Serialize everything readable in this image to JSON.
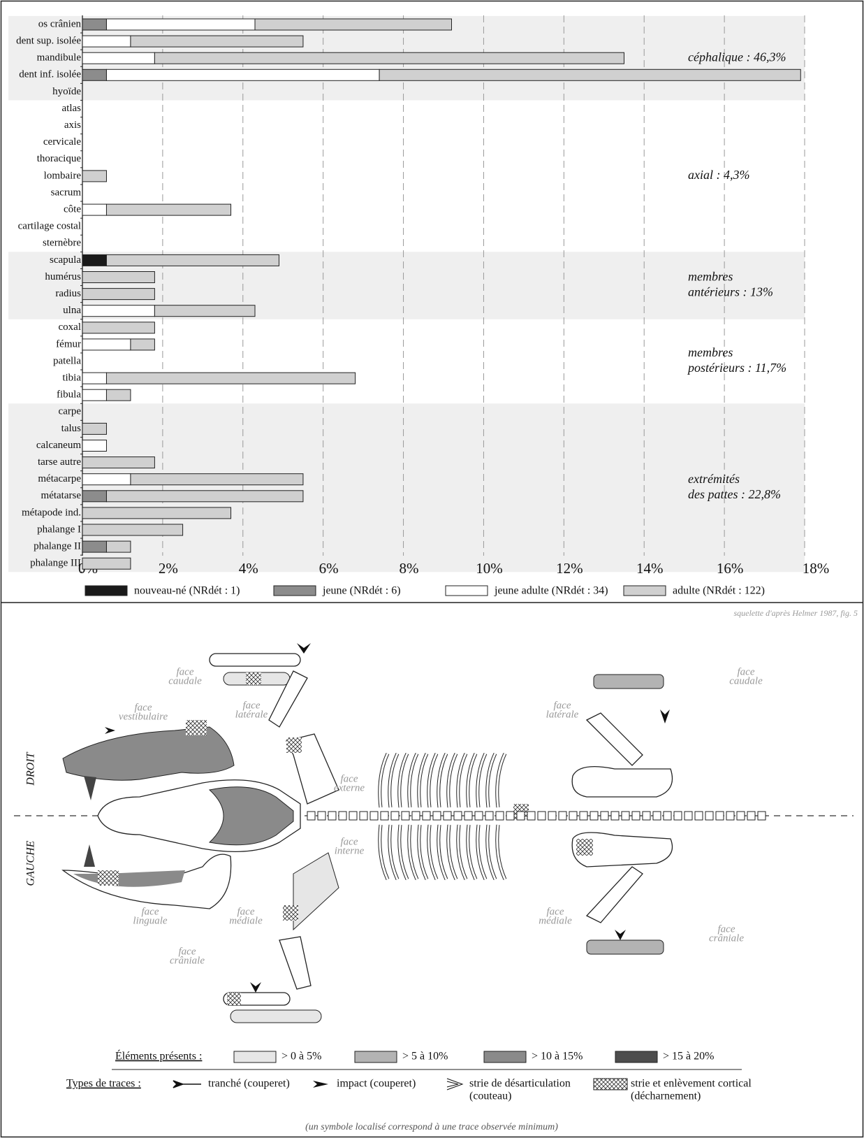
{
  "chart_data": {
    "type": "bar",
    "orientation": "horizontal",
    "stacked": true,
    "categories": [
      "os crânien",
      "dent sup. isolée",
      "mandibule",
      "dent inf. isolée",
      "hyoïde",
      "atlas",
      "axis",
      "cervicale",
      "thoracique",
      "lombaire",
      "sacrum",
      "côte",
      "cartilage costal",
      "sternèbre",
      "scapula",
      "humérus",
      "radius",
      "ulna",
      "coxal",
      "fémur",
      "patella",
      "tibia",
      "fibula",
      "carpe",
      "talus",
      "calcaneum",
      "tarse autre",
      "métacarpe",
      "métatarse",
      "métapode ind.",
      "phalange I",
      "phalange II",
      "phalange III"
    ],
    "series": [
      {
        "name": "nouveau-né (NRdét : 1)",
        "color": "#1a1a1a",
        "values": [
          0,
          0,
          0,
          0,
          0,
          0,
          0,
          0,
          0,
          0,
          0,
          0,
          0,
          0,
          0.6,
          0,
          0,
          0,
          0,
          0,
          0,
          0,
          0,
          0,
          0,
          0,
          0,
          0,
          0,
          0,
          0,
          0,
          0
        ]
      },
      {
        "name": "jeune (NRdét : 6)",
        "color": "#8c8c8c",
        "values": [
          0.6,
          0,
          0,
          0.6,
          0,
          0,
          0,
          0,
          0,
          0,
          0,
          0,
          0,
          0,
          0,
          0,
          0,
          0,
          0,
          0,
          0,
          0,
          0,
          0,
          0,
          0,
          0,
          0,
          0.6,
          0,
          0,
          0.6,
          0
        ]
      },
      {
        "name": "jeune adulte (NRdét : 34)",
        "color": "#ffffff",
        "values": [
          3.7,
          1.2,
          1.8,
          6.8,
          0,
          0,
          0,
          0,
          0,
          0,
          0,
          0.6,
          0,
          0,
          0,
          0,
          0,
          1.8,
          0,
          1.2,
          0,
          0.6,
          0.6,
          0,
          0,
          0.6,
          0,
          1.2,
          0,
          0,
          0,
          0,
          0
        ]
      },
      {
        "name": "adulte (NRdét : 122)",
        "color": "#d0d0d0",
        "values": [
          4.9,
          4.3,
          11.7,
          10.5,
          0,
          0,
          0,
          0,
          0,
          0.6,
          0,
          3.1,
          0,
          0,
          4.3,
          1.8,
          1.8,
          2.5,
          1.8,
          0.6,
          0,
          6.2,
          0.6,
          0,
          0.6,
          0,
          1.8,
          4.3,
          4.9,
          3.7,
          2.5,
          0.6,
          1.2
        ]
      }
    ],
    "xlim": [
      0,
      18
    ],
    "xticks": [
      {
        "value": 0,
        "label": "0%"
      },
      {
        "value": 2,
        "label": "2%"
      },
      {
        "value": 4,
        "label": "4%"
      },
      {
        "value": 6,
        "label": "6%"
      },
      {
        "value": 8,
        "label": "8%"
      },
      {
        "value": 10,
        "label": "10%"
      },
      {
        "value": 12,
        "label": "12%"
      },
      {
        "value": 14,
        "label": "14%"
      },
      {
        "value": 16,
        "label": "16%"
      },
      {
        "value": 18,
        "label": "18%"
      }
    ],
    "grid": true,
    "annotations": [
      [
        "céphalique : 46,3%"
      ],
      [
        "axial : 4,3%"
      ],
      [
        "membres",
        "antérieurs : 13%"
      ],
      [
        "membres",
        "postérieurs : 11,7%"
      ],
      [
        "extrémités",
        "des pattes : 22,8%"
      ]
    ]
  },
  "diagram": {
    "credit": "squelette d'après Helmer 1987, fig. 5",
    "sides": [
      "DROIT",
      "GAUCHE"
    ],
    "face_labels": [
      {
        "lines": [
          "face",
          "caudale"
        ]
      },
      {
        "lines": [
          "face",
          "latérale"
        ]
      },
      {
        "lines": [
          "face",
          "vestibulaire"
        ]
      },
      {
        "lines": [
          "face",
          "externe"
        ]
      },
      {
        "lines": [
          "face",
          "interne"
        ]
      },
      {
        "lines": [
          "face",
          "linguale"
        ]
      },
      {
        "lines": [
          "face",
          "médiale"
        ]
      },
      {
        "lines": [
          "face",
          "crâniale"
        ]
      },
      {
        "lines": [
          "face",
          "latérale"
        ]
      },
      {
        "lines": [
          "face",
          "caudale"
        ]
      },
      {
        "lines": [
          "face",
          "médiale"
        ]
      },
      {
        "lines": [
          "face",
          "crâniale"
        ]
      }
    ],
    "presence_legend": {
      "title": "Éléments présents :",
      "items": [
        {
          "label": "> 0 à 5%",
          "color": "#e6e6e6"
        },
        {
          "label": "> 5 à 10%",
          "color": "#b3b3b3"
        },
        {
          "label": "> 10 à 15%",
          "color": "#8a8a8a"
        },
        {
          "label": "> 15 à 20%",
          "color": "#4d4d4d"
        }
      ]
    },
    "traces_legend": {
      "title": "Types de traces :",
      "items": [
        {
          "lines": [
            "tranché (couperet)"
          ]
        },
        {
          "lines": [
            "impact (couperet)"
          ]
        },
        {
          "lines": [
            "strie de désarticulation",
            "(couteau)"
          ]
        },
        {
          "lines": [
            "strie et enlèvement cortical",
            "(décharnement)"
          ]
        }
      ]
    },
    "footnote": "(un symbole localisé correspond à une trace observée minimum)"
  }
}
